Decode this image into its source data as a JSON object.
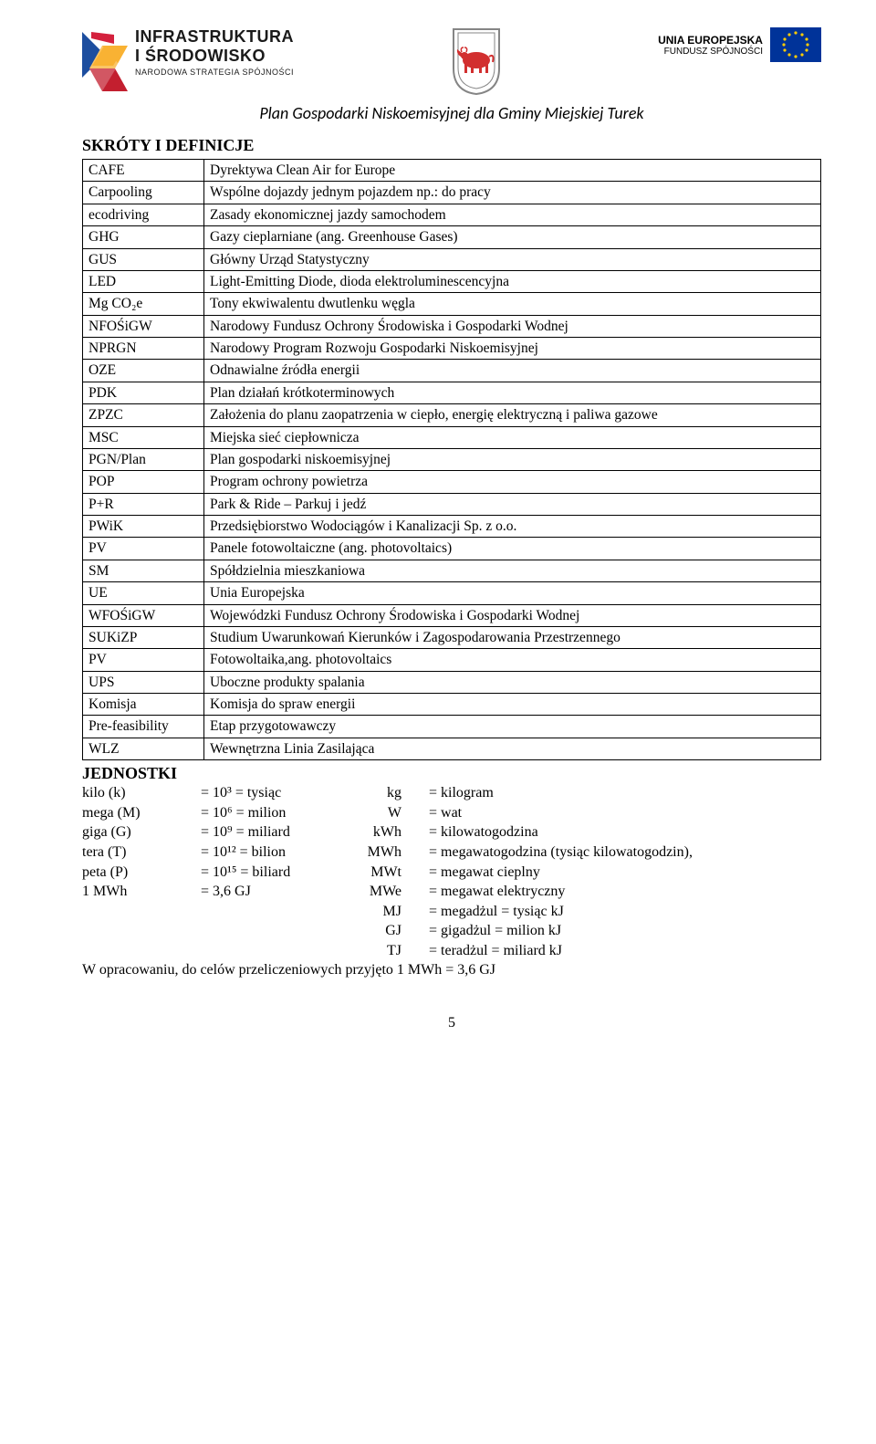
{
  "header": {
    "left": {
      "line1": "INFRASTRUKTURA",
      "line2": "I ŚRODOWISKO",
      "line3": "NARODOWA STRATEGIA SPÓJNOŚCI"
    },
    "right": {
      "line1": "UNIA EUROPEJSKA",
      "line2": "FUNDUSZ SPÓJNOŚCI"
    },
    "colors": {
      "eu_blue": "#003399",
      "eu_star": "#ffcc00",
      "pl_flag_red": "#d4213d",
      "logo_yellow": "#f9b233",
      "logo_blue": "#1d4e9f",
      "logo_red": "#c31f2f",
      "shield_red": "#d22f2f",
      "shield_border": "#858585"
    }
  },
  "doc_subtitle": "Plan Gospodarki Niskoemisyjnej dla Gminy Miejskiej Turek",
  "section_heading": "SKRÓTY I DEFINICJE",
  "definitions": [
    {
      "abbr": "CAFE",
      "def": "Dyrektywa Clean Air for Europe"
    },
    {
      "abbr": "Carpooling",
      "def": "Wspólne dojazdy jednym pojazdem np.: do pracy"
    },
    {
      "abbr": "ecodriving",
      "def": "Zasady ekonomicznej jazdy samochodem"
    },
    {
      "abbr": "GHG",
      "def": "Gazy cieplarniane (ang. Greenhouse Gases)"
    },
    {
      "abbr": "GUS",
      "def": "Główny Urząd Statystyczny"
    },
    {
      "abbr": "LED",
      "def": "Light-Emitting Diode, dioda elektroluminescencyjna"
    },
    {
      "abbr": "Mg CO₂e",
      "def": "Tony ekwiwalentu dwutlenku węgla"
    },
    {
      "abbr": "NFOŚiGW",
      "def": "Narodowy Fundusz Ochrony Środowiska i Gospodarki Wodnej"
    },
    {
      "abbr": "NPRGN",
      "def": "Narodowy Program Rozwoju Gospodarki Niskoemisyjnej"
    },
    {
      "abbr": "OZE",
      "def": "Odnawialne źródła energii"
    },
    {
      "abbr": "PDK",
      "def": "Plan działań krótkoterminowych"
    },
    {
      "abbr": "ZPZC",
      "def": "Założenia do planu zaopatrzenia w ciepło, energię elektryczną i paliwa gazowe"
    },
    {
      "abbr": "MSC",
      "def": "Miejska sieć ciepłownicza"
    },
    {
      "abbr": "PGN/Plan",
      "def": "Plan gospodarki niskoemisyjnej"
    },
    {
      "abbr": "POP",
      "def": "Program ochrony powietrza"
    },
    {
      "abbr": "P+R",
      "def": "Park & Ride – Parkuj i jedź"
    },
    {
      "abbr": "PWiK",
      "def": "Przedsiębiorstwo Wodociągów i Kanalizacji Sp. z o.o."
    },
    {
      "abbr": "PV",
      "def": "Panele fotowoltaiczne (ang. photovoltaics)"
    },
    {
      "abbr": "SM",
      "def": "Spółdzielnia mieszkaniowa"
    },
    {
      "abbr": "UE",
      "def": "Unia Europejska"
    },
    {
      "abbr": "WFOŚiGW",
      "def": "Wojewódzki Fundusz Ochrony Środowiska i Gospodarki Wodnej"
    },
    {
      "abbr": "SUKiZP",
      "def": "Studium Uwarunkowań Kierunków i Zagospodarowania Przestrzennego"
    },
    {
      "abbr": "PV",
      "def": "Fotowoltaika,ang. photovoltaics"
    },
    {
      "abbr": "UPS",
      "def": "Uboczne produkty spalania"
    },
    {
      "abbr": "Komisja",
      "def": "Komisja do spraw energii"
    },
    {
      "abbr": "Pre-feasibility",
      "def": "Etap przygotowawczy"
    },
    {
      "abbr": "WLZ",
      "def": "Wewnętrzna Linia Zasilająca"
    }
  ],
  "units_heading": "JEDNOSTKI",
  "units_left": [
    {
      "p": "kilo (k)",
      "e": "= 10³ = tysiąc"
    },
    {
      "p": "mega (M)",
      "e": "= 10⁶ = milion"
    },
    {
      "p": "giga (G)",
      "e": "= 10⁹ = miliard"
    },
    {
      "p": "tera (T)",
      "e": "= 10¹² = bilion"
    },
    {
      "p": "peta (P)",
      "e": "= 10¹⁵ = biliard"
    },
    {
      "p": "1 MWh",
      "e": " = 3,6 GJ"
    }
  ],
  "units_right": [
    {
      "u": "kg",
      "d": "= kilogram"
    },
    {
      "u": "W",
      "d": "= wat"
    },
    {
      "u": "kWh",
      "d": "= kilowatogodzina"
    },
    {
      "u": "MWh",
      "d": "= megawatogodzina (tysiąc kilowatogodzin),"
    },
    {
      "u": "MWt",
      "d": "= megawat cieplny"
    },
    {
      "u": "MWe",
      "d": "= megawat elektryczny"
    },
    {
      "u": "MJ",
      "d": "= megadżul = tysiąc kJ"
    },
    {
      "u": "GJ",
      "d": "= gigadżul = milion kJ"
    },
    {
      "u": "TJ",
      "d": "= teradżul = miliard kJ"
    }
  ],
  "units_note": "W opracowaniu, do celów przeliczeniowych przyjęto 1 MWh = 3,6 GJ",
  "page_number": "5"
}
